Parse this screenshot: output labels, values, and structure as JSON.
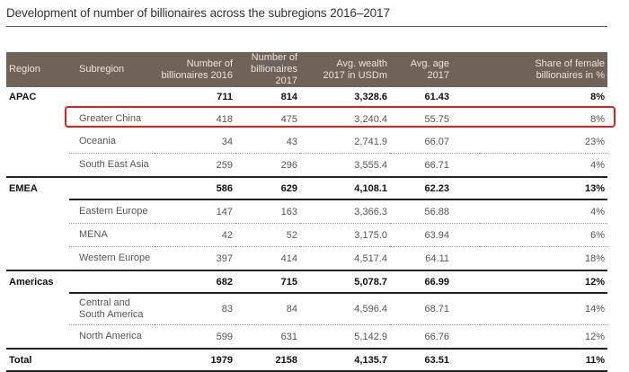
{
  "title": "Development of number of billionaires across the subregions 2016–2017",
  "table": {
    "headers": {
      "region": "Region",
      "subregion": "Subregion",
      "billionaires_2016": "Number of billionaires 2016",
      "billionaires_2017": "Number of billionaires 2017",
      "avg_wealth": "Avg. wealth 2017 in USDm",
      "avg_age": "Avg. age 2017",
      "female_share": "Share of female billionaires in %"
    },
    "header_lines": {
      "billionaires_2016": [
        "Number of",
        "billionaires 2016"
      ],
      "billionaires_2017": [
        "Number of",
        "billionaires 2017"
      ],
      "avg_wealth": [
        "Avg. wealth",
        "2017 in USDm"
      ],
      "female_share": [
        "Share of female",
        "billionaires in %"
      ]
    },
    "rows": {
      "apac": {
        "region": "APAC",
        "b2016": "711",
        "b2017": "814",
        "wealth": "3,328.6",
        "age": "61.43",
        "female": "8%"
      },
      "greater_china": {
        "subregion": "Greater China",
        "b2016": "418",
        "b2017": "475",
        "wealth": "3,240.4",
        "age": "55.75",
        "female": "8%"
      },
      "oceania": {
        "subregion": "Oceania",
        "b2016": "34",
        "b2017": "43",
        "wealth": "2,741.9",
        "age": "66.07",
        "female": "23%"
      },
      "south_east_asia": {
        "subregion": "South East Asia",
        "b2016": "259",
        "b2017": "296",
        "wealth": "3,555.4",
        "age": "66.71",
        "female": "4%"
      },
      "emea": {
        "region": "EMEA",
        "b2016": "586",
        "b2017": "629",
        "wealth": "4,108.1",
        "age": "62.23",
        "female": "13%"
      },
      "eastern_europe": {
        "subregion": "Eastern Europe",
        "b2016": "147",
        "b2017": "163",
        "wealth": "3,366.3",
        "age": "56.88",
        "female": "4%"
      },
      "mena": {
        "subregion": "MENA",
        "b2016": "42",
        "b2017": "52",
        "wealth": "3,175.0",
        "age": "63.94",
        "female": "6%"
      },
      "western_europe": {
        "subregion": "Western Europe",
        "b2016": "397",
        "b2017": "414",
        "wealth": "4,517.4",
        "age": "64.11",
        "female": "18%"
      },
      "americas": {
        "region": "Americas",
        "b2016": "682",
        "b2017": "715",
        "wealth": "5,078.7",
        "age": "66.99",
        "female": "12%"
      },
      "central_south_america": {
        "subregion_line1": "Central and",
        "subregion_line2": "South America",
        "b2016": "83",
        "b2017": "84",
        "wealth": "4,596.4",
        "age": "68.71",
        "female": "14%"
      },
      "north_america": {
        "subregion": "North America",
        "b2016": "599",
        "b2017": "631",
        "wealth": "5,142.9",
        "age": "66.76",
        "female": "12%"
      },
      "total": {
        "region": "Total",
        "b2016": "1979",
        "b2017": "2158",
        "wealth": "4,135.7",
        "age": "63.51",
        "female": "11%"
      }
    }
  },
  "highlight": {
    "row": "Greater China",
    "color": "#e0201c"
  },
  "colors": {
    "header_bg": "#6e6259",
    "header_text": "#eae4df",
    "highlight": "#e0201c"
  }
}
